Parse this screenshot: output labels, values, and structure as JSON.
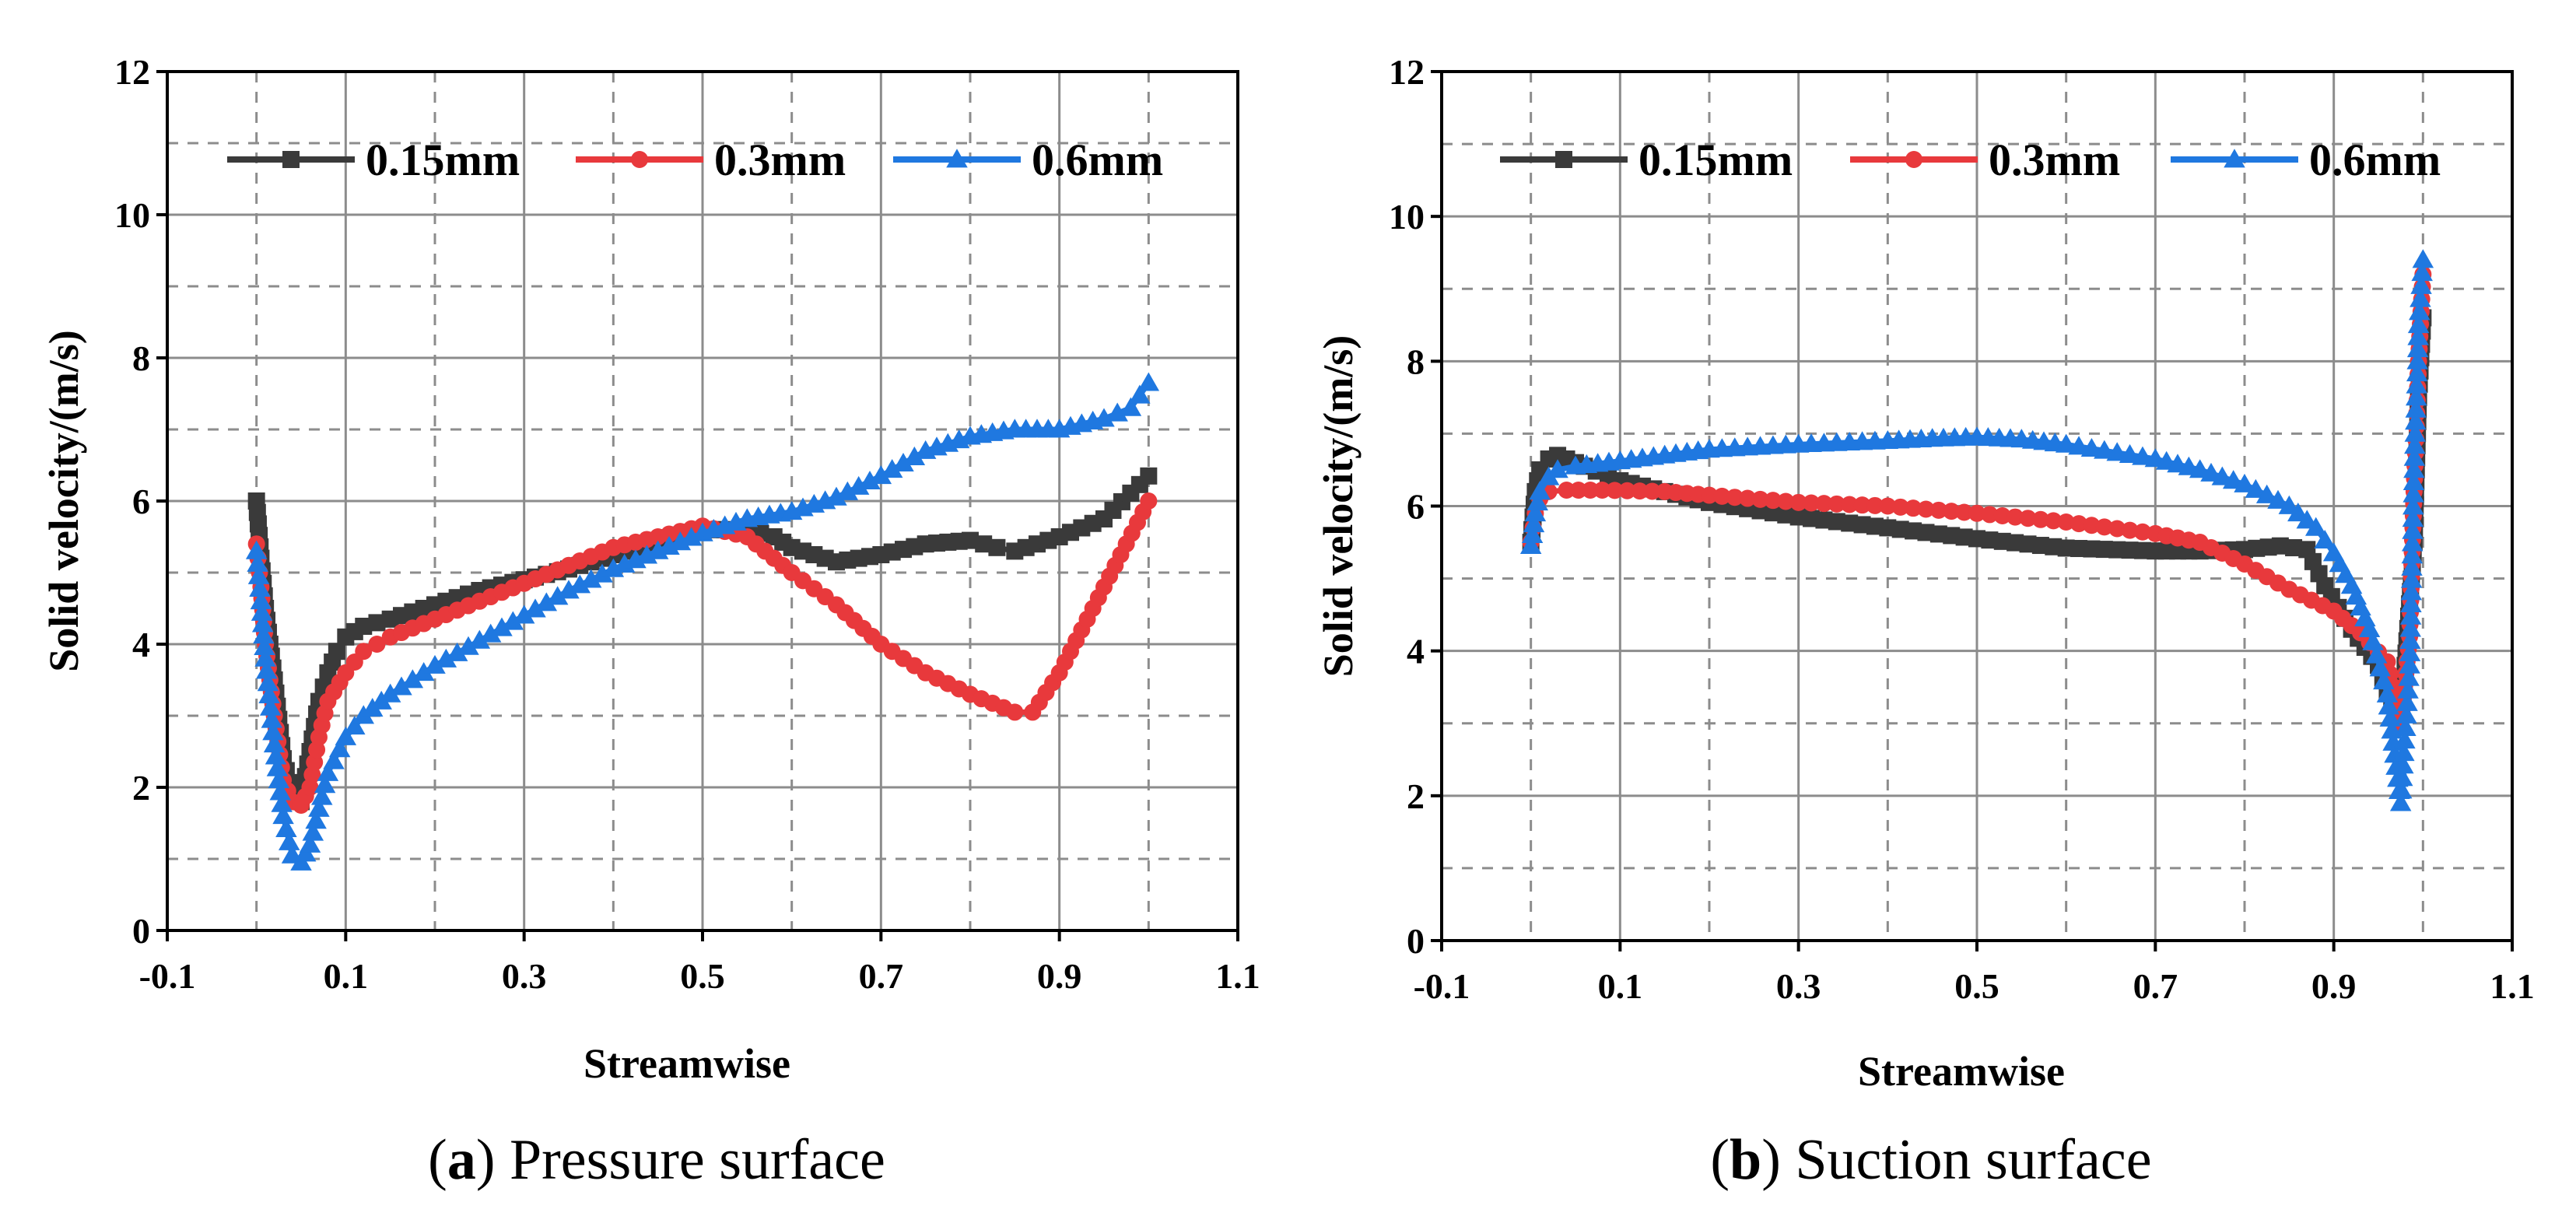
{
  "figure": {
    "captions": [
      {
        "letter": "a",
        "text": " Pressure surface"
      },
      {
        "letter": "b",
        "text": " Suction surface"
      }
    ]
  },
  "colors": {
    "s015": "#3a3a3a",
    "s03": "#e8393c",
    "s06": "#1f78e0"
  },
  "chart_data": [
    {
      "type": "line",
      "title": "",
      "xlabel": "Streamwise",
      "ylabel": "Solid velocity/(m/s)",
      "xlim": [
        -0.1,
        1.1
      ],
      "ylim": [
        0,
        12
      ],
      "xticks": [
        -0.1,
        0.1,
        0.3,
        0.5,
        0.7,
        0.9,
        1.1
      ],
      "xtick_labels": [
        "-0.1",
        "0.1",
        "0.3",
        "0.5",
        "0.7",
        "0.9",
        "1.1"
      ],
      "yticks": [
        0,
        2,
        4,
        6,
        8,
        10,
        12
      ],
      "ytick_labels": [
        "0",
        "2",
        "4",
        "6",
        "8",
        "10",
        "12"
      ],
      "grid": true,
      "legend": "top",
      "series": [
        {
          "name": "0.15mm",
          "marker": "square",
          "color": "#3a3a3a",
          "x": [
            0.0,
            0.005,
            0.01,
            0.02,
            0.03,
            0.04,
            0.05,
            0.06,
            0.07,
            0.08,
            0.09,
            0.1,
            0.12,
            0.15,
            0.2,
            0.25,
            0.3,
            0.35,
            0.4,
            0.45,
            0.5,
            0.55,
            0.58,
            0.6,
            0.65,
            0.7,
            0.75,
            0.8,
            0.83,
            0.85,
            0.9,
            0.95,
            1.0
          ],
          "y": [
            6.0,
            5.2,
            4.5,
            3.5,
            2.4,
            1.9,
            1.8,
            2.5,
            3.2,
            3.6,
            3.9,
            4.1,
            4.25,
            4.35,
            4.55,
            4.75,
            4.9,
            5.05,
            5.25,
            5.45,
            5.6,
            5.6,
            5.5,
            5.35,
            5.15,
            5.25,
            5.4,
            5.45,
            5.35,
            5.3,
            5.5,
            5.75,
            6.35
          ]
        },
        {
          "name": "0.3mm",
          "marker": "circle",
          "color": "#e8393c",
          "x": [
            0.0,
            0.005,
            0.01,
            0.02,
            0.03,
            0.04,
            0.05,
            0.06,
            0.07,
            0.08,
            0.1,
            0.12,
            0.15,
            0.2,
            0.25,
            0.3,
            0.35,
            0.4,
            0.45,
            0.5,
            0.55,
            0.6,
            0.65,
            0.7,
            0.75,
            0.8,
            0.85,
            0.87,
            0.9,
            0.95,
            1.0
          ],
          "y": [
            5.4,
            4.8,
            4.0,
            3.0,
            2.1,
            1.8,
            1.75,
            2.0,
            2.7,
            3.2,
            3.6,
            3.9,
            4.1,
            4.35,
            4.6,
            4.85,
            5.1,
            5.35,
            5.5,
            5.65,
            5.5,
            5.0,
            4.55,
            4.0,
            3.6,
            3.3,
            3.05,
            3.05,
            3.6,
            4.8,
            6.0
          ]
        },
        {
          "name": "0.6mm",
          "marker": "triangle",
          "color": "#1f78e0",
          "x": [
            0.0,
            0.005,
            0.01,
            0.02,
            0.03,
            0.04,
            0.05,
            0.06,
            0.07,
            0.08,
            0.1,
            0.12,
            0.15,
            0.2,
            0.25,
            0.3,
            0.35,
            0.4,
            0.45,
            0.5,
            0.55,
            0.6,
            0.65,
            0.7,
            0.75,
            0.8,
            0.85,
            0.9,
            0.95,
            0.98,
            1.0
          ],
          "y": [
            5.3,
            4.6,
            3.8,
            2.6,
            1.6,
            1.05,
            0.95,
            1.2,
            1.7,
            2.2,
            2.7,
            3.0,
            3.3,
            3.7,
            4.05,
            4.4,
            4.75,
            5.05,
            5.3,
            5.55,
            5.75,
            5.85,
            6.05,
            6.35,
            6.7,
            6.9,
            7.0,
            7.0,
            7.15,
            7.3,
            7.65
          ]
        }
      ]
    },
    {
      "type": "line",
      "title": "",
      "xlabel": "Streamwise",
      "ylabel": "Solid velocity/(m/s)",
      "xlim": [
        -0.1,
        1.1
      ],
      "ylim": [
        0,
        12
      ],
      "xticks": [
        -0.1,
        0.1,
        0.3,
        0.5,
        0.7,
        0.9,
        1.1
      ],
      "xtick_labels": [
        "-0.1",
        "0.1",
        "0.3",
        "0.5",
        "0.7",
        "0.9",
        "1.1"
      ],
      "yticks": [
        0,
        2,
        4,
        6,
        8,
        10,
        12
      ],
      "ytick_labels": [
        "0",
        "2",
        "4",
        "6",
        "8",
        "10",
        "12"
      ],
      "grid": true,
      "legend": "top",
      "series": [
        {
          "name": "0.15mm",
          "marker": "square",
          "color": "#3a3a3a",
          "x": [
            0.0,
            0.005,
            0.01,
            0.02,
            0.03,
            0.04,
            0.06,
            0.1,
            0.15,
            0.2,
            0.3,
            0.4,
            0.5,
            0.6,
            0.7,
            0.75,
            0.8,
            0.84,
            0.87,
            0.89,
            0.92,
            0.95,
            0.97,
            0.98,
            0.99,
            0.995,
            1.0
          ],
          "y": [
            5.5,
            6.2,
            6.5,
            6.65,
            6.7,
            6.65,
            6.55,
            6.35,
            6.2,
            6.05,
            5.85,
            5.7,
            5.55,
            5.42,
            5.38,
            5.38,
            5.4,
            5.45,
            5.4,
            4.9,
            4.3,
            3.8,
            3.1,
            3.8,
            5.5,
            7.5,
            8.6
          ]
        },
        {
          "name": "0.3mm",
          "marker": "circle",
          "color": "#e8393c",
          "x": [
            0.0,
            0.005,
            0.01,
            0.02,
            0.04,
            0.08,
            0.15,
            0.2,
            0.3,
            0.4,
            0.5,
            0.6,
            0.7,
            0.75,
            0.8,
            0.85,
            0.9,
            0.93,
            0.96,
            0.975,
            0.985,
            0.99,
            0.995,
            1.0
          ],
          "y": [
            5.5,
            5.9,
            6.1,
            6.2,
            6.22,
            6.22,
            6.2,
            6.15,
            6.05,
            6.0,
            5.9,
            5.78,
            5.62,
            5.5,
            5.2,
            4.85,
            4.55,
            4.25,
            3.85,
            3.0,
            4.2,
            6.2,
            8.0,
            9.2
          ]
        },
        {
          "name": "0.6mm",
          "marker": "triangle",
          "color": "#1f78e0",
          "x": [
            0.0,
            0.005,
            0.01,
            0.02,
            0.03,
            0.05,
            0.1,
            0.15,
            0.2,
            0.3,
            0.4,
            0.45,
            0.5,
            0.55,
            0.6,
            0.7,
            0.75,
            0.8,
            0.85,
            0.88,
            0.9,
            0.92,
            0.94,
            0.96,
            0.975,
            0.985,
            0.99,
            0.995,
            1.0
          ],
          "y": [
            5.45,
            5.9,
            6.2,
            6.4,
            6.5,
            6.55,
            6.62,
            6.7,
            6.78,
            6.85,
            6.9,
            6.93,
            6.95,
            6.92,
            6.85,
            6.65,
            6.5,
            6.3,
            6.0,
            5.7,
            5.35,
            4.9,
            4.3,
            3.4,
            1.9,
            3.8,
            6.5,
            8.5,
            9.4
          ]
        }
      ]
    }
  ]
}
